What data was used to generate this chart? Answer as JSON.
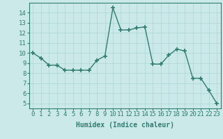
{
  "x": [
    0,
    1,
    2,
    3,
    4,
    5,
    6,
    7,
    8,
    9,
    10,
    11,
    12,
    13,
    14,
    15,
    16,
    17,
    18,
    19,
    20,
    21,
    22,
    23
  ],
  "y": [
    10.0,
    9.5,
    8.8,
    8.8,
    8.3,
    8.3,
    8.3,
    8.3,
    9.3,
    9.7,
    14.5,
    12.3,
    12.3,
    12.5,
    12.6,
    8.9,
    8.9,
    9.8,
    10.4,
    10.2,
    7.5,
    7.5,
    6.3,
    5.0
  ],
  "line_color": "#2e7d6e",
  "marker": "+",
  "marker_size": 4,
  "xlabel": "Humidex (Indice chaleur)",
  "xlim": [
    -0.5,
    23.5
  ],
  "ylim": [
    4.5,
    15.0
  ],
  "yticks": [
    5,
    6,
    7,
    8,
    9,
    10,
    11,
    12,
    13,
    14
  ],
  "xticks": [
    0,
    1,
    2,
    3,
    4,
    5,
    6,
    7,
    8,
    9,
    10,
    11,
    12,
    13,
    14,
    15,
    16,
    17,
    18,
    19,
    20,
    21,
    22,
    23
  ],
  "bg_color": "#cce9e9",
  "grid_color": "#aad4d4",
  "tick_color": "#2e7d6e",
  "label_color": "#2e7d6e",
  "xlabel_fontsize": 7,
  "tick_fontsize": 6.5,
  "linewidth": 1.0,
  "markeredgewidth": 1.2
}
